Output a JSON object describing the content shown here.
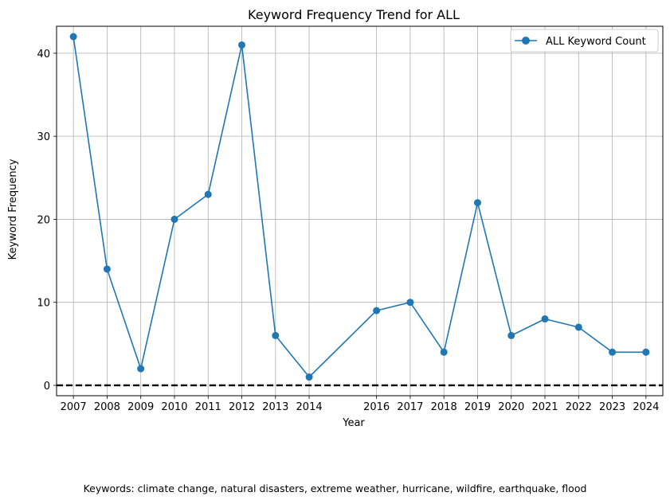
{
  "chart_data": {
    "type": "line",
    "title": "Keyword Frequency Trend for ALL",
    "xlabel": "Year",
    "ylabel": "Keyword Frequency",
    "xlim": [
      2006.5,
      2024.5
    ],
    "ylim": [
      -1.25,
      43.25
    ],
    "x_ticks": [
      2007,
      2008,
      2009,
      2010,
      2011,
      2012,
      2013,
      2014,
      2016,
      2017,
      2018,
      2019,
      2020,
      2021,
      2022,
      2023,
      2024
    ],
    "y_ticks": [
      0,
      10,
      20,
      30,
      40
    ],
    "grid": true,
    "legend_position": "top-right",
    "reference_line": {
      "y": 0,
      "style": "dashed",
      "color": "#000000"
    },
    "series": [
      {
        "name": "ALL Keyword Count",
        "color": "#1f77b4",
        "marker": "circle",
        "x": [
          2007,
          2008,
          2009,
          2010,
          2011,
          2012,
          2013,
          2014,
          2016,
          2017,
          2018,
          2019,
          2020,
          2021,
          2022,
          2023,
          2024
        ],
        "y": [
          42,
          14,
          2,
          20,
          23,
          41,
          6,
          1,
          9,
          10,
          4,
          22,
          6,
          8,
          7,
          4,
          4
        ]
      }
    ]
  },
  "footnote": "Keywords: climate change, natural disasters, extreme weather, hurricane, wildfire, earthquake, flood"
}
